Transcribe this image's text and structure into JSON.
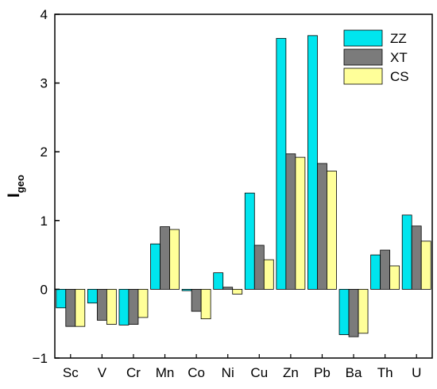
{
  "chart_data": {
    "type": "bar",
    "title": "",
    "xlabel": "",
    "ylabel": "I",
    "ylabel_sub": "geo",
    "ylim": [
      -1,
      4
    ],
    "yticks": [
      "−1",
      "0",
      "1",
      "2",
      "3",
      "4"
    ],
    "ytick_values": [
      -1,
      0,
      1,
      2,
      3,
      4
    ],
    "grid": false,
    "legend_position": "top-right",
    "categories": [
      "Sc",
      "V",
      "Cr",
      "Mn",
      "Co",
      "Ni",
      "Cu",
      "Zn",
      "Pb",
      "Ba",
      "Th",
      "U"
    ],
    "series": [
      {
        "name": "ZZ",
        "color": "#00e5ee",
        "values": [
          -0.27,
          -0.2,
          -0.52,
          0.66,
          -0.02,
          0.24,
          1.4,
          3.65,
          3.69,
          -0.66,
          0.5,
          1.08
        ]
      },
      {
        "name": "XT",
        "color": "#7b7b7b",
        "values": [
          -0.54,
          -0.45,
          -0.51,
          0.91,
          -0.32,
          0.03,
          0.64,
          1.97,
          1.83,
          -0.69,
          0.57,
          0.92
        ]
      },
      {
        "name": "CS",
        "color": "#ffff99",
        "values": [
          -0.54,
          -0.51,
          -0.41,
          0.87,
          -0.43,
          -0.07,
          0.43,
          1.92,
          1.72,
          -0.64,
          0.34,
          0.7
        ]
      }
    ]
  }
}
